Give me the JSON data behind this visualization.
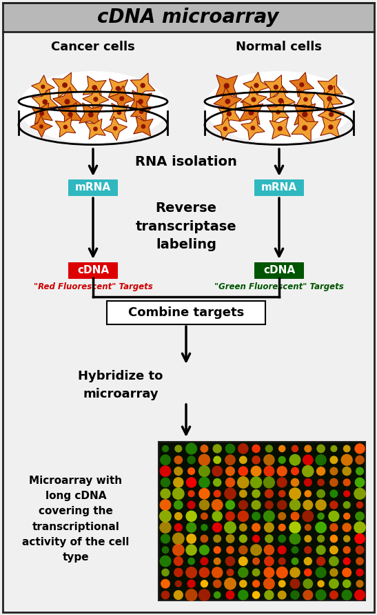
{
  "title": "cDNA microarray",
  "title_bg": "#b8b8b8",
  "title_fontsize": 20,
  "bg_color": "#f0f0f0",
  "border_color": "#222222",
  "label_cancer": "Cancer cells",
  "label_normal": "Normal cells",
  "label_rna": "RNA isolation",
  "label_mrna": "mRNA",
  "label_mrna_bg": "#30b8c0",
  "label_reverse": "Reverse\ntranscriptase\nlabeling",
  "label_cdna_red": "cDNA",
  "label_cdna_green": "cDNA",
  "label_cdna_red_bg": "#dd0000",
  "label_cdna_green_bg": "#005500",
  "label_red_target": "\"Red Fluorescent\" Targets",
  "label_green_target": "\"Green Fluorescent\" Targets",
  "label_red_target_color": "#cc0000",
  "label_green_target_color": "#005500",
  "label_combine": "Combine targets",
  "label_hybridize": "Hybridize to\nmicroarray",
  "label_microarray": "Microarray with\nlong cDNA\ncovering the\ntranscriptional\nactivity of the cell\ntype",
  "text_color": "#000000",
  "cell_orange": "#e07818",
  "cell_dark": "#8b1500",
  "cell_light": "#f0a030"
}
